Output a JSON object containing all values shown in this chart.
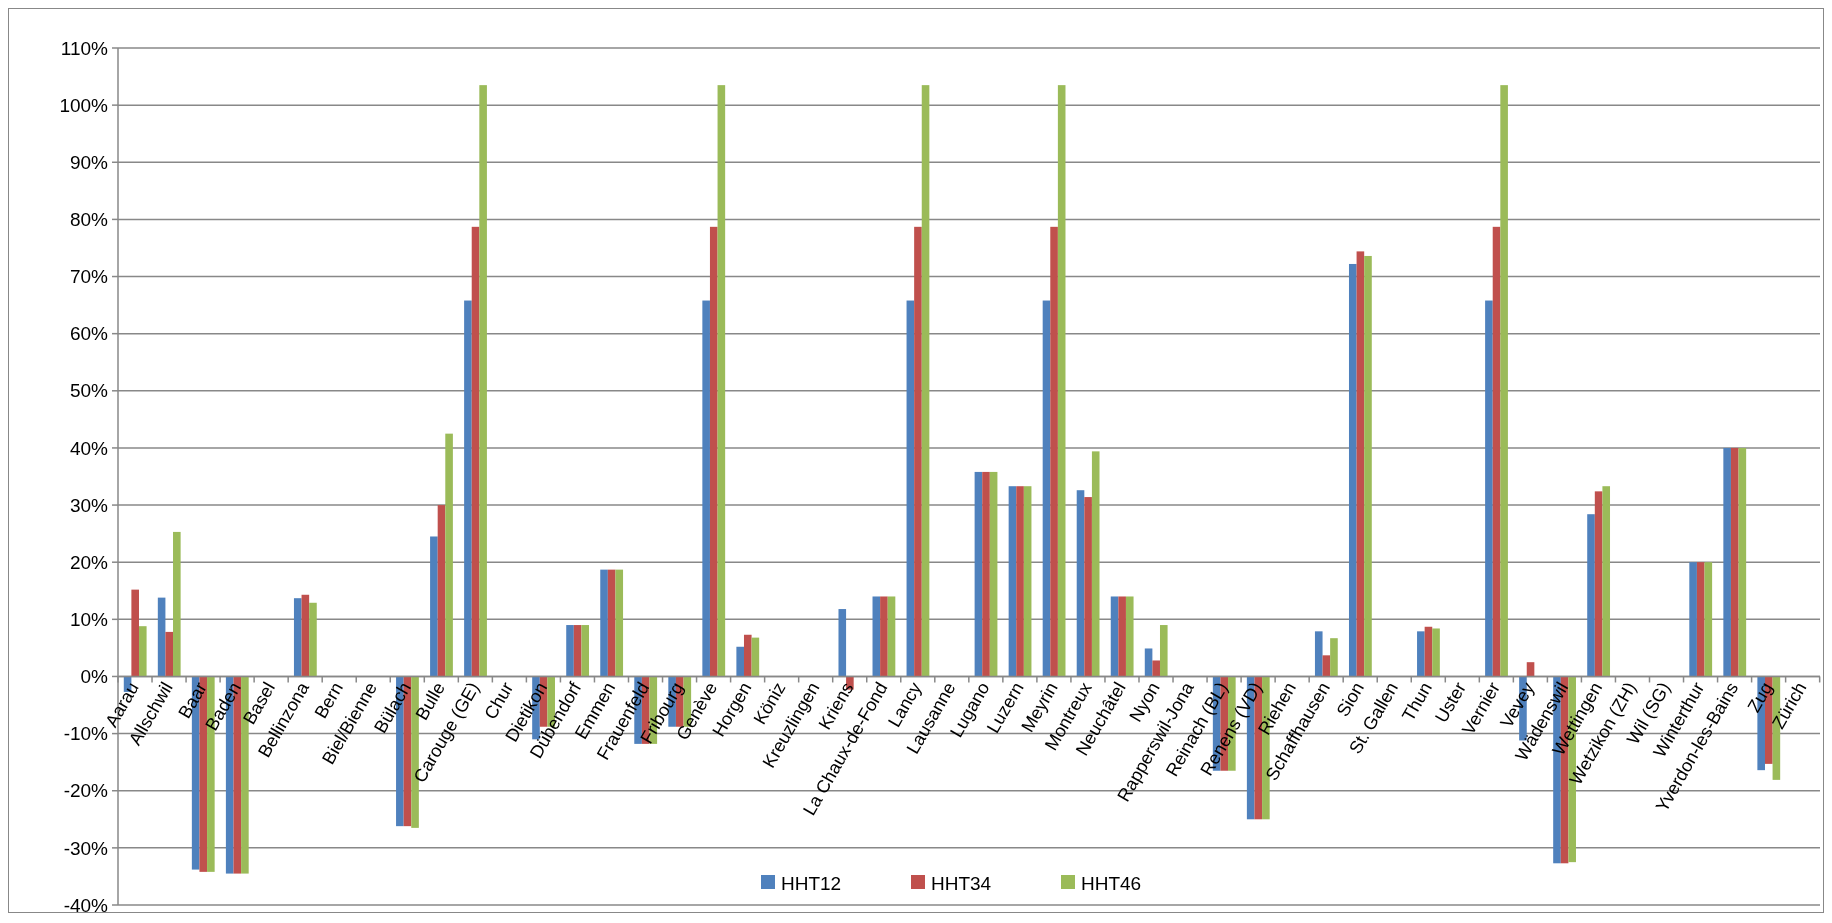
{
  "chart_data": {
    "type": "bar",
    "categories": [
      "Aarau",
      "Allschwil",
      "Baar",
      "Baden",
      "Basel",
      "Bellinzona",
      "Bern",
      "Biel/Bienne",
      "Bülach",
      "Bulle",
      "Carouge (GE)",
      "Chur",
      "Dietikon",
      "Dübendorf",
      "Emmen",
      "Frauenfeld",
      "Fribourg",
      "Genève",
      "Horgen",
      "Köniz",
      "Kreuzlingen",
      "Kriens",
      "La Chaux-de-Fond",
      "Lancy",
      "Lausanne",
      "Lugano",
      "Luzern",
      "Meyrin",
      "Montreux",
      "Neuchâtel",
      "Nyon",
      "Rapperswil-Jona",
      "Reinach (BL)",
      "Renens (VD)",
      "Riehen",
      "Schaffhausen",
      "Sion",
      "St. Gallen",
      "Thun",
      "Uster",
      "Vernier",
      "Vevey",
      "Wädenswil",
      "Wettingen",
      "Wetzikon (ZH)",
      "Wil (SG)",
      "Winterthur",
      "Yverdon-les-Bains",
      "Zug",
      "Zürich"
    ],
    "series": [
      {
        "name": "HHT12",
        "color": "#4f81bd",
        "values": [
          -2.7,
          13.8,
          -33.8,
          -34.5,
          null,
          13.7,
          null,
          null,
          -26.2,
          24.5,
          65.8,
          null,
          -11,
          9,
          18.7,
          -11.8,
          -8.8,
          65.8,
          5.2,
          null,
          null,
          11.8,
          14,
          65.8,
          null,
          35.8,
          33.3,
          65.8,
          32.6,
          14,
          4.9,
          null,
          -16.5,
          -25,
          null,
          7.9,
          72.2,
          null,
          7.9,
          null,
          65.8,
          -11.2,
          -32.7,
          28.4,
          null,
          null,
          20,
          40,
          -16.4,
          null
        ]
      },
      {
        "name": "HHT34",
        "color": "#c0504d",
        "values": [
          15.2,
          7.8,
          -34.2,
          -34.5,
          null,
          14.3,
          null,
          null,
          -26.2,
          30,
          78.7,
          null,
          -8.8,
          9,
          18.7,
          -11.8,
          -8.8,
          78.7,
          7.3,
          null,
          null,
          -2.3,
          14,
          78.7,
          null,
          35.8,
          33.3,
          78.7,
          31.4,
          14,
          2.8,
          null,
          -16.5,
          -25,
          null,
          3.7,
          74.4,
          null,
          8.7,
          null,
          78.7,
          2.5,
          -32.7,
          32.4,
          null,
          null,
          20,
          40,
          -15.3,
          null
        ]
      },
      {
        "name": "HHT46",
        "color": "#9bbb59",
        "values": [
          8.8,
          25.3,
          -34.2,
          -34.5,
          null,
          12.9,
          null,
          null,
          -26.5,
          42.5,
          103.5,
          null,
          -8.8,
          9,
          18.7,
          -11.8,
          -8.8,
          103.5,
          6.8,
          null,
          null,
          null,
          14,
          103.5,
          null,
          35.8,
          33.3,
          103.5,
          39.4,
          14,
          9,
          null,
          -16.5,
          -25,
          null,
          6.7,
          73.6,
          null,
          8.4,
          null,
          103.5,
          null,
          -32.5,
          33.3,
          null,
          null,
          20,
          40,
          -18.1,
          null
        ]
      }
    ],
    "ylim": [
      -40,
      110
    ],
    "yticks": [
      {
        "value": -40,
        "label": "-40%"
      },
      {
        "value": -30,
        "label": "-30%"
      },
      {
        "value": -20,
        "label": "-20%"
      },
      {
        "value": -10,
        "label": "-10%"
      },
      {
        "value": 0,
        "label": "0%"
      },
      {
        "value": 10,
        "label": "10%"
      },
      {
        "value": 20,
        "label": "20%"
      },
      {
        "value": 30,
        "label": "30%"
      },
      {
        "value": 40,
        "label": "40%"
      },
      {
        "value": 50,
        "label": "50%"
      },
      {
        "value": 60,
        "label": "60%"
      },
      {
        "value": 70,
        "label": "70%"
      },
      {
        "value": 80,
        "label": "80%"
      },
      {
        "value": 90,
        "label": "90%"
      },
      {
        "value": 100,
        "label": "100%"
      },
      {
        "value": 110,
        "label": "110%"
      }
    ],
    "grid": "y",
    "legend": "bottom"
  }
}
